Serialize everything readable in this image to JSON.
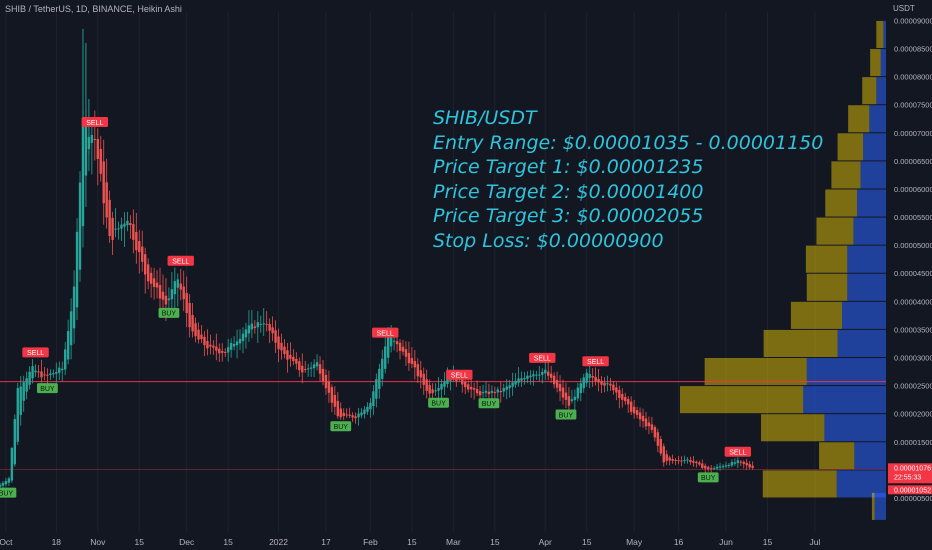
{
  "header": {
    "title": "SHIB / TetherUS, 1D, BINANCE, Heikin Ashi"
  },
  "axis": {
    "unit": "USDT",
    "y_ticks": [
      "0.00009000",
      "0.00008500",
      "0.00008000",
      "0.00007500",
      "0.00007000",
      "0.00006500",
      "0.00006000",
      "0.00005500",
      "0.00005000",
      "0.00004500",
      "0.00004000",
      "0.00003500",
      "0.00003000",
      "0.00002500",
      "0.00002000",
      "0.00001500",
      "0.00001000",
      "0.00000500"
    ],
    "x_ticks": [
      "Oct",
      "18",
      "Nov",
      "15",
      "Dec",
      "15",
      "2022",
      "17",
      "Feb",
      "15",
      "Mar",
      "15",
      "Apr",
      "15",
      "May",
      "16",
      "Jun",
      "15",
      "Jul"
    ]
  },
  "price_labels": {
    "last": "0.00001076",
    "countdown": "22:55:33",
    "low": "0.00001052"
  },
  "overlay_text": {
    "line1": "SHIB/USDT",
    "line2": "Entry Range: $0.00001035 - 0.00001150",
    "line3": "Price Target 1: $0.00001235",
    "line4": "Price Target 2: $0.00001400",
    "line5": "Price Target 3: $0.00002055",
    "line6": "Stop Loss: $0.00000900"
  },
  "signals": [
    {
      "label": "BUY",
      "type": "buy",
      "date": "2021-10-01",
      "price": 7.2e-06
    },
    {
      "label": "SELL",
      "type": "sell",
      "date": "2021-10-11",
      "price": 2.95e-05
    },
    {
      "label": "BUY",
      "type": "buy",
      "date": "2021-10-15",
      "price": 2.58e-05
    },
    {
      "label": "SELL",
      "type": "sell",
      "date": "2021-10-31",
      "price": 7.05e-05
    },
    {
      "label": "BUY",
      "type": "buy",
      "date": "2021-11-25",
      "price": 3.92e-05
    },
    {
      "label": "SELL",
      "type": "sell",
      "date": "2021-11-29",
      "price": 4.58e-05
    },
    {
      "label": "BUY",
      "type": "buy",
      "date": "2022-01-22",
      "price": 1.9e-05
    },
    {
      "label": "SELL",
      "type": "sell",
      "date": "2022-02-06",
      "price": 3.3e-05
    },
    {
      "label": "BUY",
      "type": "buy",
      "date": "2022-02-24",
      "price": 2.32e-05
    },
    {
      "label": "SELL",
      "type": "sell",
      "date": "2022-03-03",
      "price": 2.55e-05
    },
    {
      "label": "BUY",
      "type": "buy",
      "date": "2022-03-13",
      "price": 2.31e-05
    },
    {
      "label": "SELL",
      "type": "sell",
      "date": "2022-03-31",
      "price": 2.85e-05
    },
    {
      "label": "BUY",
      "type": "buy",
      "date": "2022-04-08",
      "price": 2.11e-05
    },
    {
      "label": "SELL",
      "type": "sell",
      "date": "2022-04-18",
      "price": 2.79e-05
    },
    {
      "label": "BUY",
      "type": "buy",
      "date": "2022-05-26",
      "price": 9.9e-06
    },
    {
      "label": "SELL",
      "type": "sell",
      "date": "2022-06-05",
      "price": 1.18e-05
    }
  ],
  "colors": {
    "bg": "#131722",
    "up": "#26a69a",
    "down": "#ef5350",
    "grid": "#1e222d",
    "hline": "#f23645",
    "text": "#2fc3dc",
    "vp_up": "#2962ff",
    "vp_down": "#ffd600"
  },
  "chart_data": {
    "type": "candlestick",
    "style": "Heikin Ashi",
    "ylim": [
      2.5e-06,
      9.15e-05
    ],
    "xlim": [
      "2021-09-29",
      "2022-07-25"
    ],
    "grid": false,
    "horizontal_lines": [
      2.57e-05,
      1.01e-05
    ],
    "price_path": [
      [
        "2021-09-29",
        7e-06
      ],
      [
        "2021-10-03",
        8.5e-06
      ],
      [
        "2021-10-06",
        2.45e-05
      ],
      [
        "2021-10-11",
        2.8e-05
      ],
      [
        "2021-10-15",
        2.65e-05
      ],
      [
        "2021-10-21",
        2.8e-05
      ],
      [
        "2021-10-25",
        4.2e-05
      ],
      [
        "2021-10-28",
        7.2e-05
      ],
      [
        "2021-11-01",
        6.9e-05
      ],
      [
        "2021-11-06",
        5.1e-05
      ],
      [
        "2021-11-12",
        5.5e-05
      ],
      [
        "2021-11-18",
        4.5e-05
      ],
      [
        "2021-11-25",
        3.95e-05
      ],
      [
        "2021-11-29",
        4.4e-05
      ],
      [
        "2021-12-04",
        3.4e-05
      ],
      [
        "2021-12-10",
        3.15e-05
      ],
      [
        "2021-12-15",
        3.1e-05
      ],
      [
        "2021-12-22",
        3.5e-05
      ],
      [
        "2021-12-28",
        3.65e-05
      ],
      [
        "2022-01-03",
        3.1e-05
      ],
      [
        "2022-01-10",
        2.75e-05
      ],
      [
        "2022-01-15",
        2.9e-05
      ],
      [
        "2022-01-22",
        1.95e-05
      ],
      [
        "2022-01-28",
        1.95e-05
      ],
      [
        "2022-02-02",
        2.2e-05
      ],
      [
        "2022-02-08",
        3.4e-05
      ],
      [
        "2022-02-15",
        2.95e-05
      ],
      [
        "2022-02-22",
        2.35e-05
      ],
      [
        "2022-03-01",
        2.7e-05
      ],
      [
        "2022-03-10",
        2.35e-05
      ],
      [
        "2022-03-18",
        2.4e-05
      ],
      [
        "2022-03-27",
        2.7e-05
      ],
      [
        "2022-04-02",
        2.75e-05
      ],
      [
        "2022-04-10",
        2.15e-05
      ],
      [
        "2022-04-16",
        2.7e-05
      ],
      [
        "2022-04-25",
        2.45e-05
      ],
      [
        "2022-05-02",
        2e-05
      ],
      [
        "2022-05-08",
        1.7e-05
      ],
      [
        "2022-05-12",
        1.15e-05
      ],
      [
        "2022-05-20",
        1.18e-05
      ],
      [
        "2022-05-27",
        1e-05
      ],
      [
        "2022-06-06",
        1.15e-05
      ],
      [
        "2022-06-10",
        1.05e-05
      ]
    ],
    "volume_profile": [
      {
        "price": 8.75e-05,
        "up": 0.3,
        "down": 0.8
      },
      {
        "price": 8.25e-05,
        "up": 0.6,
        "down": 1.2
      },
      {
        "price": 7.75e-05,
        "up": 1.1,
        "down": 1.6
      },
      {
        "price": 7.25e-05,
        "up": 1.9,
        "down": 2.4
      },
      {
        "price": 6.75e-05,
        "up": 2.6,
        "down": 2.9
      },
      {
        "price": 6.25e-05,
        "up": 2.9,
        "down": 3.3
      },
      {
        "price": 5.75e-05,
        "up": 3.3,
        "down": 3.6
      },
      {
        "price": 5.25e-05,
        "up": 3.7,
        "down": 4.2
      },
      {
        "price": 4.75e-05,
        "up": 4.4,
        "down": 4.7
      },
      {
        "price": 4.25e-05,
        "up": 4.4,
        "down": 4.6
      },
      {
        "price": 3.75e-05,
        "up": 5.0,
        "down": 5.8
      },
      {
        "price": 3.25e-05,
        "up": 5.5,
        "down": 8.4
      },
      {
        "price": 2.75e-05,
        "up": 9.0,
        "down": 11.6
      },
      {
        "price": 2.25e-05,
        "up": 9.4,
        "down": 14.0
      },
      {
        "price": 1.75e-05,
        "up": 7.0,
        "down": 7.2
      },
      {
        "price": 1.25e-05,
        "up": 3.6,
        "down": 4.0
      },
      {
        "price": 7.5e-06,
        "up": 5.6,
        "down": 8.4
      },
      {
        "price": 3.5e-06,
        "up": 1.3,
        "down": 0.3
      }
    ]
  }
}
